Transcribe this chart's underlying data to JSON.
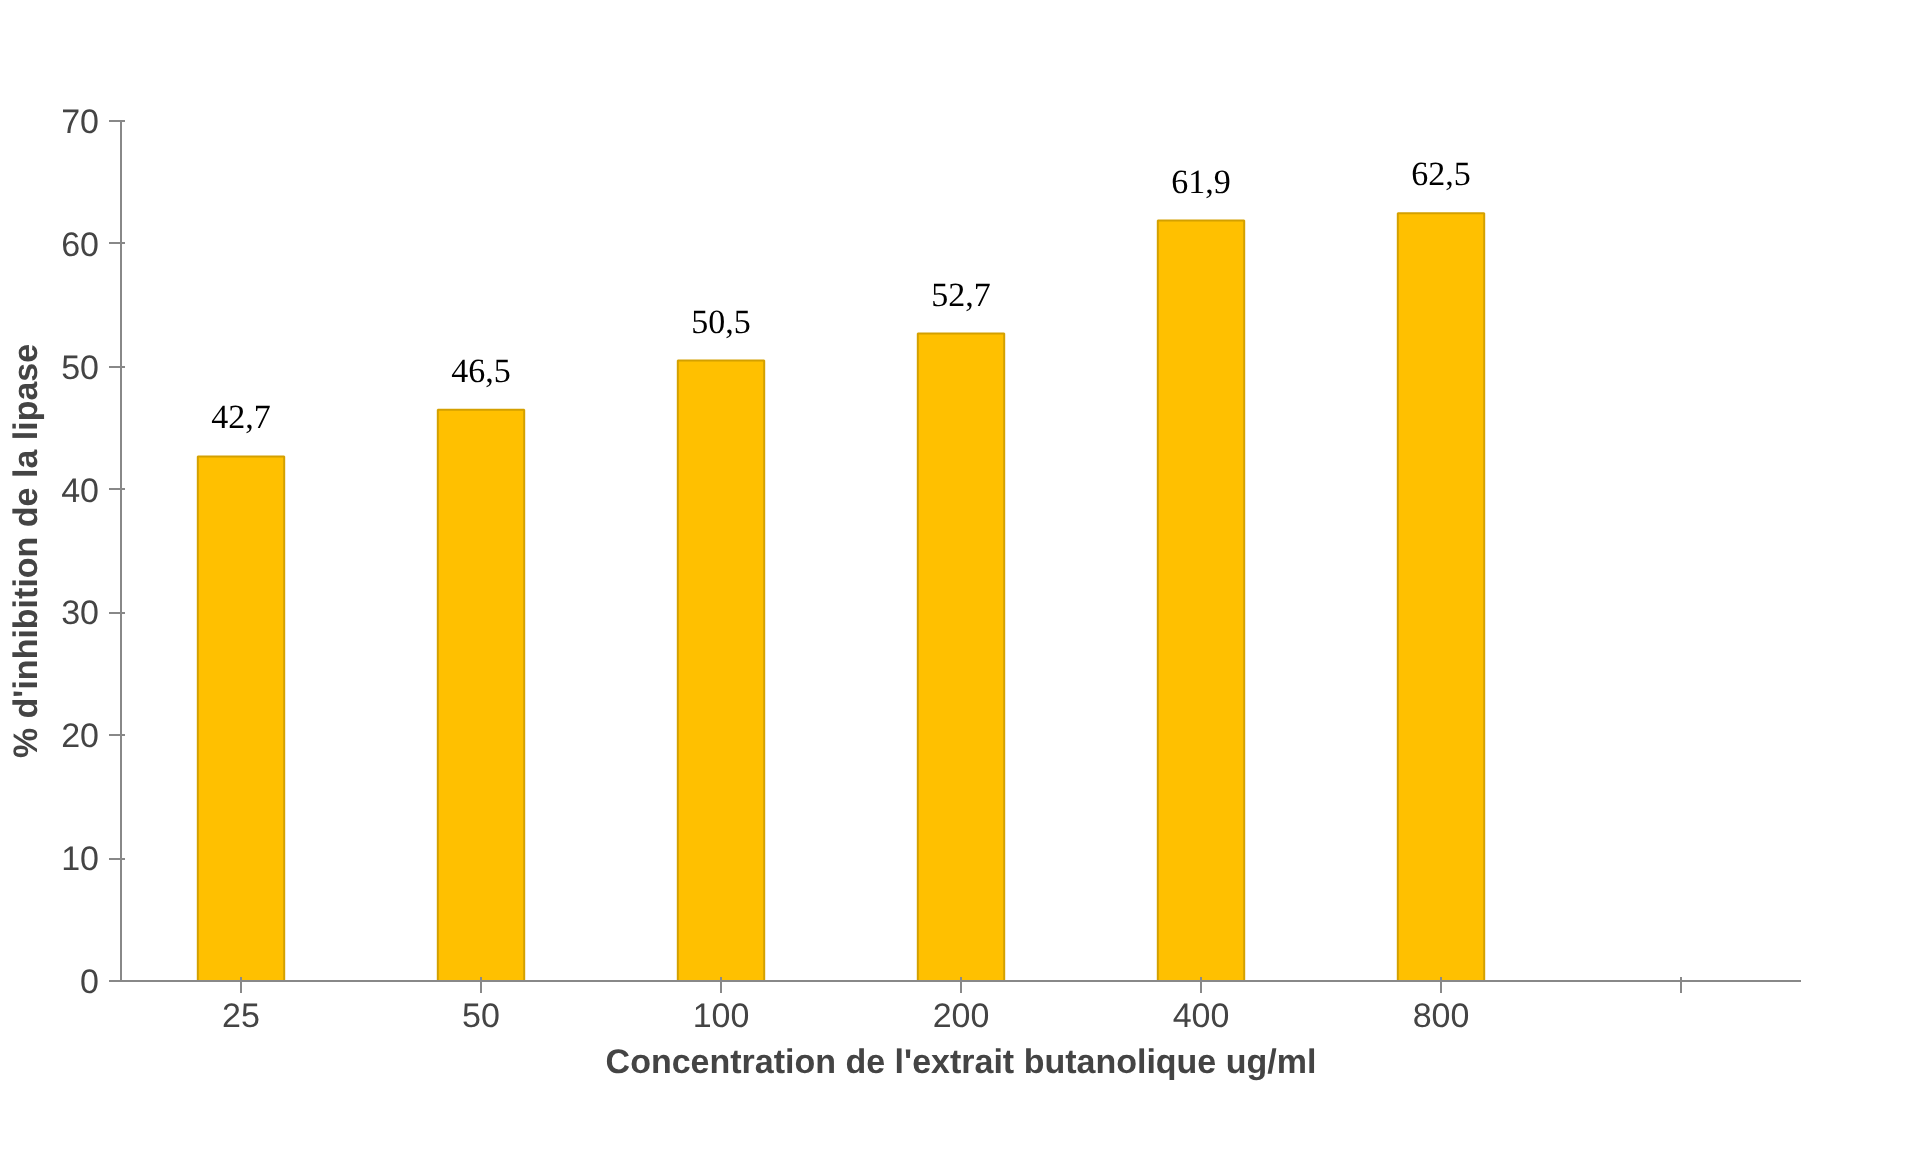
{
  "chart_data": {
    "type": "bar",
    "xlabel": "Concentration de l'extrait butanolique ug/ml",
    "ylabel": "% d'inhibition de la lipase",
    "categories": [
      "25",
      "50",
      "100",
      "200",
      "400",
      "800",
      null
    ],
    "values": [
      42.7,
      46.5,
      50.5,
      52.7,
      61.9,
      62.5,
      null
    ],
    "value_labels": [
      "42,7",
      "46,5",
      "50,5",
      "52,7",
      "61,9",
      "62,5",
      null
    ],
    "color": "#ffc000",
    "ylim": [
      0,
      70
    ],
    "yticks": [
      0,
      10,
      20,
      30,
      40,
      50,
      60,
      70
    ],
    "grid": false
  }
}
